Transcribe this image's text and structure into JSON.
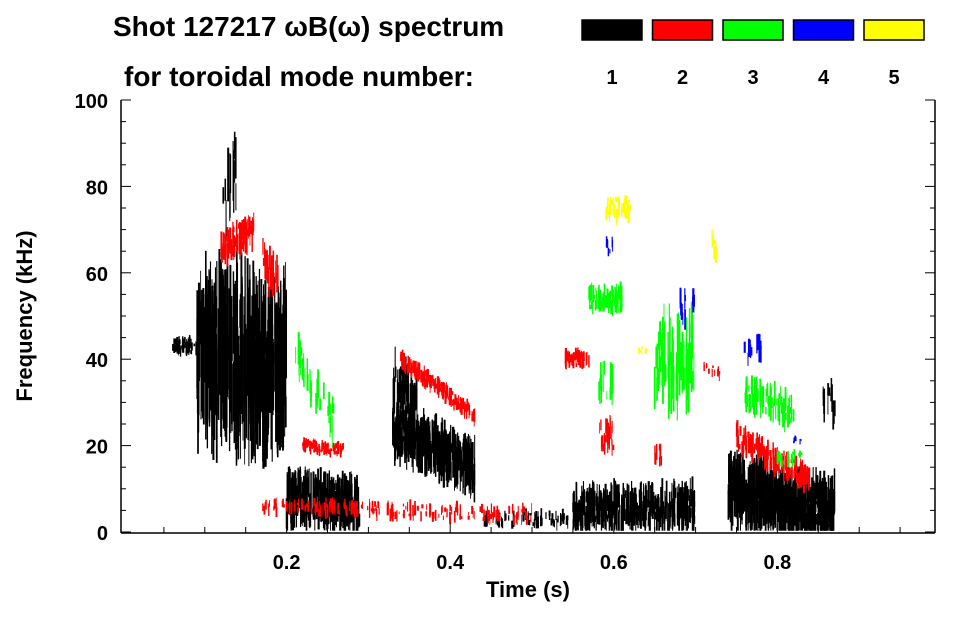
{
  "chart_data": {
    "type": "heatmap",
    "title_line1": "Shot 127217 ωB(ω) spectrum",
    "title_line2": "for toroidal mode number:",
    "xlabel": "Time (s)",
    "ylabel": "Frequency (kHz)",
    "xlim": [
      0.0,
      0.993
    ],
    "ylim": [
      0,
      100
    ],
    "xticks": [
      {
        "value": 0.2,
        "label": "0.2"
      },
      {
        "value": 0.4,
        "label": "0.4"
      },
      {
        "value": 0.6,
        "label": "0.6"
      },
      {
        "value": 0.8,
        "label": "0.8"
      }
    ],
    "yticks": [
      {
        "value": 0,
        "label": "0"
      },
      {
        "value": 20,
        "label": "20"
      },
      {
        "value": 40,
        "label": "40"
      },
      {
        "value": 60,
        "label": "60"
      },
      {
        "value": 80,
        "label": "80"
      },
      {
        "value": 100,
        "label": "100"
      }
    ],
    "legend": [
      {
        "mode": "1",
        "color": "#000000"
      },
      {
        "mode": "2",
        "color": "#ff0000"
      },
      {
        "mode": "3",
        "color": "#00ff00"
      },
      {
        "mode": "4",
        "color": "#0000ff"
      },
      {
        "mode": "5",
        "color": "#ffff00"
      }
    ],
    "features_note_format": "[t_start, t_end, f_center_start_kHz, f_center_end_kHz, f_halfwidth_kHz, density]",
    "features": {
      "1": [
        [
          0.06,
          0.09,
          43,
          43,
          2,
          3
        ],
        [
          0.09,
          0.2,
          42,
          38,
          18,
          6
        ],
        [
          0.12,
          0.14,
          75,
          85,
          12,
          1
        ],
        [
          0.2,
          0.29,
          8,
          6,
          6,
          5
        ],
        [
          0.33,
          0.43,
          24,
          15,
          6,
          6
        ],
        [
          0.33,
          0.36,
          36,
          30,
          6,
          3
        ],
        [
          0.44,
          0.55,
          3,
          3,
          2,
          1
        ],
        [
          0.55,
          0.7,
          5,
          6,
          5,
          4
        ],
        [
          0.74,
          0.87,
          10,
          5,
          7,
          6
        ],
        [
          0.85,
          0.87,
          30,
          30,
          5,
          1
        ]
      ],
      "2": [
        [
          0.12,
          0.16,
          66,
          70,
          4,
          3
        ],
        [
          0.17,
          0.19,
          63,
          58,
          5,
          2
        ],
        [
          0.22,
          0.27,
          20,
          19,
          1.5,
          3
        ],
        [
          0.34,
          0.43,
          40,
          27,
          2,
          4
        ],
        [
          0.17,
          0.5,
          6,
          4,
          2,
          1
        ],
        [
          0.54,
          0.57,
          40,
          40,
          2,
          3
        ],
        [
          0.58,
          0.6,
          22,
          22,
          4,
          2
        ],
        [
          0.65,
          0.66,
          18,
          18,
          3,
          1
        ],
        [
          0.71,
          0.73,
          38,
          37,
          1.5,
          1
        ],
        [
          0.75,
          0.84,
          22,
          12,
          3,
          3
        ]
      ],
      "3": [
        [
          0.57,
          0.61,
          54,
          54,
          3,
          3
        ],
        [
          0.58,
          0.6,
          35,
          35,
          5,
          1
        ],
        [
          0.65,
          0.7,
          40,
          40,
          10,
          2
        ],
        [
          0.76,
          0.82,
          32,
          28,
          4,
          2
        ],
        [
          0.8,
          0.83,
          18,
          17,
          2,
          1
        ],
        [
          0.21,
          0.26,
          42,
          25,
          5,
          1
        ]
      ],
      "4": [
        [
          0.59,
          0.6,
          66,
          66,
          2,
          1
        ],
        [
          0.68,
          0.7,
          52,
          52,
          4,
          1
        ],
        [
          0.76,
          0.78,
          42,
          42,
          3,
          1
        ],
        [
          0.82,
          0.83,
          21,
          21,
          1,
          1
        ]
      ],
      "5": [
        [
          0.59,
          0.62,
          75,
          75,
          3,
          2
        ],
        [
          0.72,
          0.73,
          67,
          65,
          3,
          1
        ],
        [
          0.63,
          0.64,
          42,
          42,
          1,
          1
        ]
      ]
    }
  }
}
